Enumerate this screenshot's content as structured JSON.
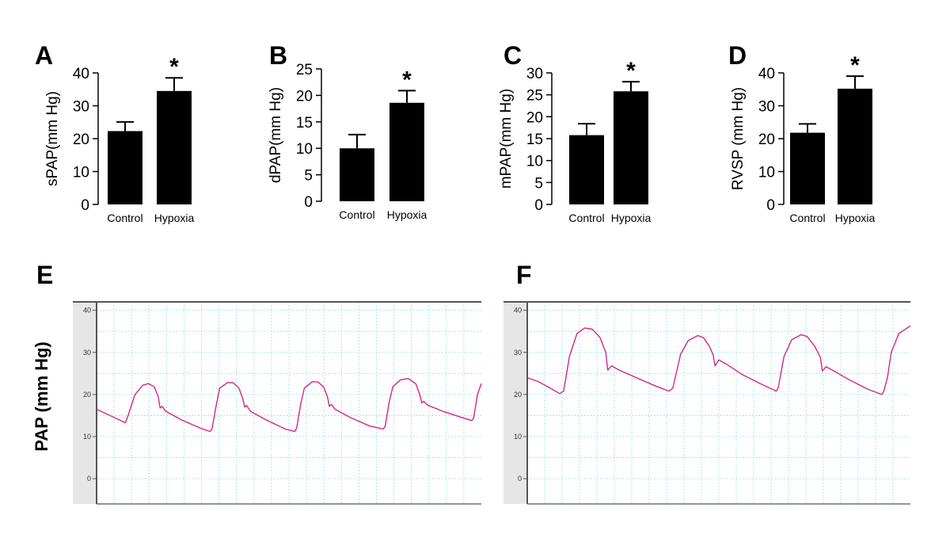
{
  "chart_data": [
    {
      "panel": "A",
      "type": "bar",
      "categories": [
        "Control",
        "Hypoxia"
      ],
      "values": [
        22.3,
        34.5
      ],
      "errors": [
        2.8,
        4.0
      ],
      "significance": [
        "",
        "*"
      ],
      "ylabel": "sPAP(mm Hg)",
      "ylim": [
        0,
        40
      ],
      "yticks": [
        0,
        10,
        20,
        30,
        40
      ]
    },
    {
      "panel": "B",
      "type": "bar",
      "categories": [
        "Control",
        "Hypoxia"
      ],
      "values": [
        10.0,
        18.6
      ],
      "errors": [
        2.6,
        2.3
      ],
      "significance": [
        "",
        "*"
      ],
      "ylabel": "dPAP(mm Hg)",
      "ylim": [
        0,
        25
      ],
      "yticks": [
        0,
        5,
        10,
        15,
        20,
        25
      ]
    },
    {
      "panel": "C",
      "type": "bar",
      "categories": [
        "Control",
        "Hypoxia"
      ],
      "values": [
        15.8,
        25.8
      ],
      "errors": [
        2.6,
        2.2
      ],
      "significance": [
        "",
        "*"
      ],
      "ylabel": "mPAP(mm Hg)",
      "ylim": [
        0,
        30
      ],
      "yticks": [
        0,
        5,
        10,
        15,
        20,
        25,
        30
      ]
    },
    {
      "panel": "D",
      "type": "bar",
      "categories": [
        "Control",
        "Hypoxia"
      ],
      "values": [
        21.8,
        35.2
      ],
      "errors": [
        2.7,
        3.8
      ],
      "significance": [
        "",
        "*"
      ],
      "ylabel": "RVSP (mm Hg)",
      "ylim": [
        0,
        40
      ],
      "yticks": [
        0,
        10,
        20,
        30,
        40
      ]
    },
    {
      "panel": "E",
      "type": "line",
      "ylabel": "PAP (mm Hg)",
      "ylim": [
        -6,
        42
      ],
      "yticks": [
        0,
        10,
        20,
        30,
        40
      ],
      "grid": true,
      "xlim": [
        0,
        100
      ],
      "series": [
        {
          "x": [
            0,
            7.5,
            8,
            10,
            12,
            13.5,
            15,
            16,
            16.5,
            17,
            18,
            22,
            27,
            29.5,
            30,
            31,
            32,
            34,
            35.5,
            37,
            38,
            38.5,
            39,
            40,
            44,
            49,
            51.5,
            52,
            53,
            54,
            56,
            57.5,
            59,
            60,
            60.5,
            61,
            62,
            66,
            71,
            74.5,
            75,
            76,
            77,
            79,
            81,
            83,
            84,
            84.5,
            85,
            86,
            90,
            95,
            97.5,
            98,
            99,
            100
          ],
          "y": [
            16.5,
            13.3,
            14.5,
            20.0,
            22.2,
            22.6,
            21.8,
            19.5,
            16.8,
            17.2,
            16.0,
            14.0,
            12.0,
            11.2,
            11.8,
            17.0,
            21.5,
            22.8,
            22.8,
            21.5,
            19.0,
            17.0,
            17.4,
            16.0,
            14.0,
            11.8,
            11.2,
            12.0,
            17.5,
            21.5,
            23.0,
            23.0,
            21.8,
            19.5,
            17.2,
            17.6,
            16.5,
            14.5,
            12.5,
            11.8,
            12.4,
            18.0,
            21.8,
            23.5,
            23.8,
            22.5,
            20.0,
            18.0,
            18.4,
            17.5,
            16.0,
            14.5,
            13.8,
            14.4,
            20.0,
            22.6
          ]
        }
      ]
    },
    {
      "panel": "F",
      "type": "line",
      "ylabel": "",
      "ylim": [
        -6,
        42
      ],
      "yticks": [
        0,
        10,
        20,
        30,
        40
      ],
      "grid": true,
      "xlim": [
        0,
        100
      ],
      "series": [
        {
          "x": [
            0,
            3,
            6,
            8.5,
            9.5,
            11,
            13,
            15,
            17,
            19,
            20.5,
            21,
            22,
            24,
            28,
            33,
            37,
            38,
            40,
            42,
            44.5,
            46,
            47.5,
            48.5,
            49,
            50,
            52,
            56,
            61,
            65,
            65.5,
            67,
            69,
            71.5,
            73,
            75,
            76.5,
            77,
            78,
            80,
            84,
            89,
            92.5,
            93,
            94,
            95,
            97,
            100
          ],
          "y": [
            24.0,
            23.0,
            21.5,
            20.2,
            20.8,
            29.0,
            34.5,
            35.8,
            35.5,
            33.5,
            30.0,
            25.8,
            26.8,
            25.8,
            24.2,
            22.2,
            20.8,
            21.5,
            29.5,
            32.8,
            34.0,
            33.5,
            31.5,
            29.5,
            26.8,
            28.2,
            27.2,
            24.8,
            22.5,
            20.8,
            21.6,
            29.0,
            33.0,
            34.2,
            33.8,
            31.5,
            28.8,
            25.6,
            26.6,
            25.6,
            23.5,
            21.2,
            20.0,
            20.6,
            24.0,
            30.0,
            34.5,
            36.3
          ]
        }
      ]
    }
  ]
}
